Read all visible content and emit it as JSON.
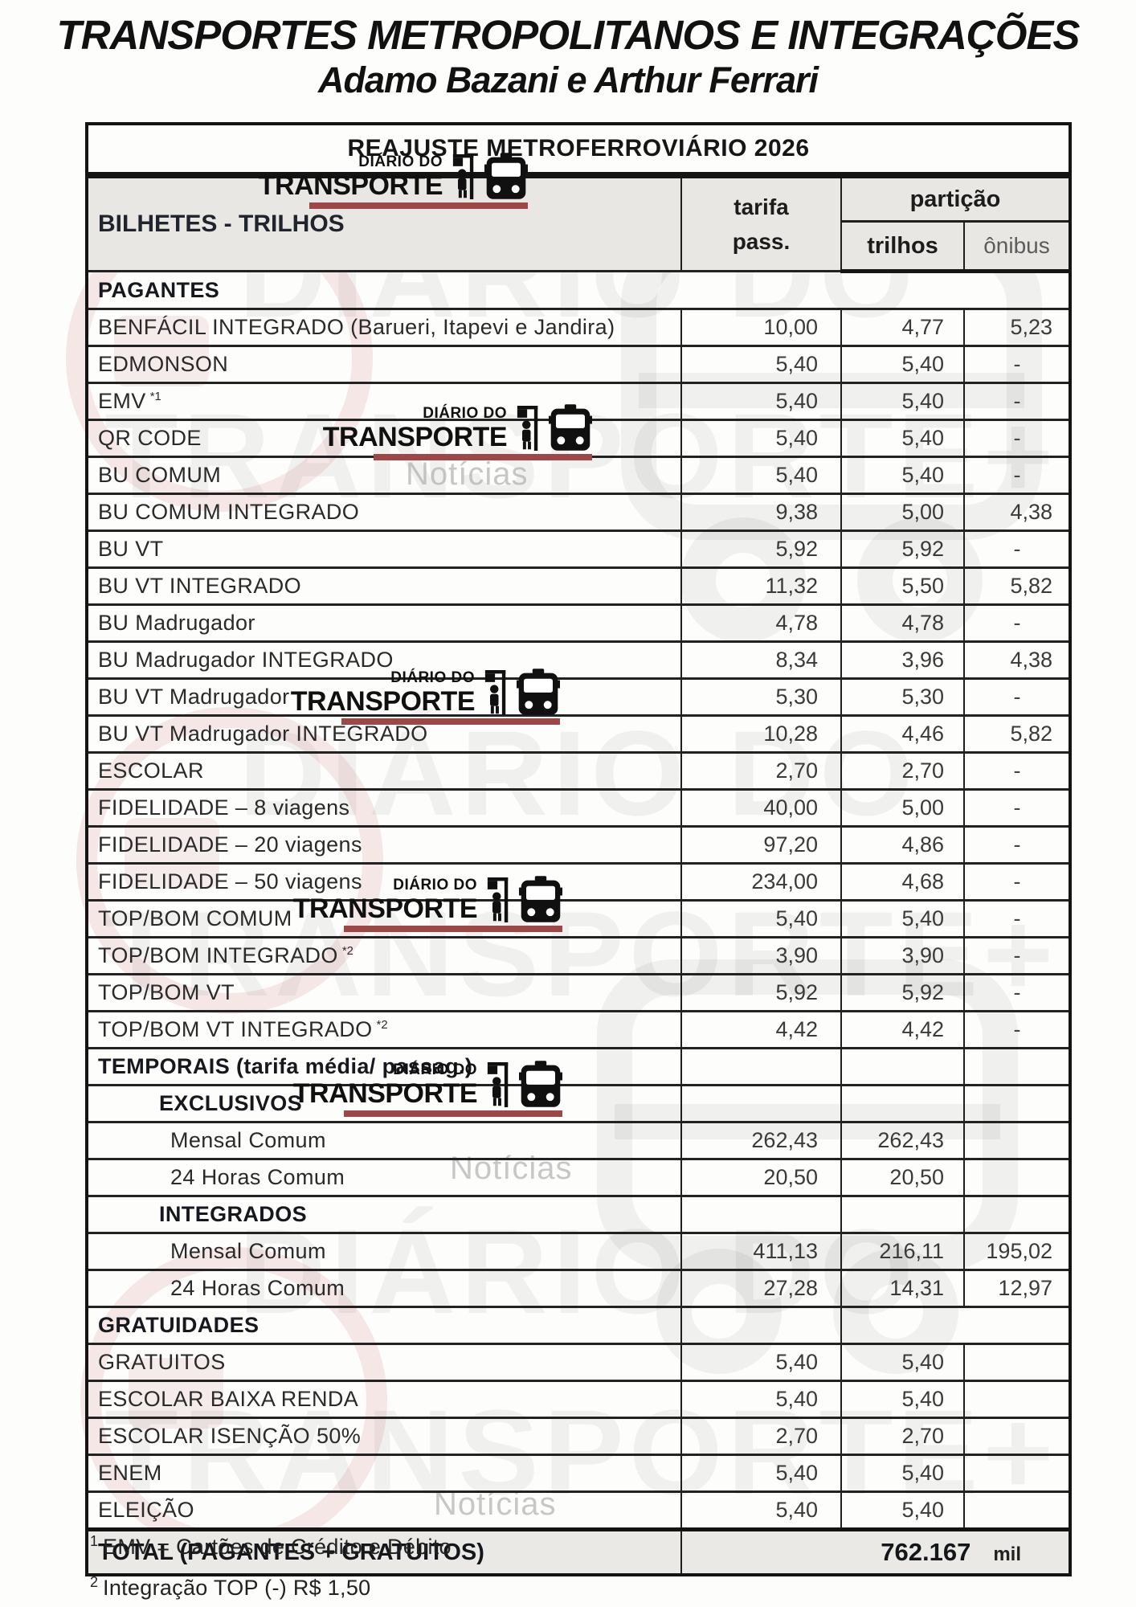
{
  "page": {
    "title": "TRANSPORTES METROPOLITANOS E INTEGRAÇÕES",
    "subtitle": "Adamo Bazani e Arthur Ferrari"
  },
  "logo": {
    "line1": "DIÁRIO DO",
    "line2": "TRANSPORTE",
    "noticias": "Notícias",
    "watermark_line1": "DIÁRIO DO",
    "watermark_line2": "TRANSPORTE+",
    "bar_color": "#9e4747"
  },
  "table": {
    "title": "REAJUSTE METROFERROVIÁRIO 2026",
    "headers": {
      "col1": "BILHETES - TRILHOS",
      "tarifa_l1": "tarifa",
      "tarifa_l2": "pass.",
      "particao": "partição",
      "trilhos": "trilhos",
      "onibus": "ônibus"
    },
    "rows": [
      {
        "type": "section",
        "merged": true,
        "label": "PAGANTES"
      },
      {
        "type": "data",
        "label": "BENFÁCIL INTEGRADO (Barueri, Itapevi e Jandira)",
        "tarifa": "10,00",
        "trilhos": "4,77",
        "onibus": "5,23"
      },
      {
        "type": "data",
        "label": "EDMONSON",
        "tarifa": "5,40",
        "trilhos": "5,40",
        "onibus": "-"
      },
      {
        "type": "data",
        "label": "EMV",
        "sup": "*1",
        "tarifa": "5,40",
        "trilhos": "5,40",
        "onibus": "-"
      },
      {
        "type": "data",
        "label": "QR CODE",
        "tarifa": "5,40",
        "trilhos": "5,40",
        "onibus": "-"
      },
      {
        "type": "data",
        "label": "BU COMUM",
        "tarifa": "5,40",
        "trilhos": "5,40",
        "onibus": "-"
      },
      {
        "type": "data",
        "label": "BU COMUM INTEGRADO",
        "tarifa": "9,38",
        "trilhos": "5,00",
        "onibus": "4,38"
      },
      {
        "type": "data",
        "label": "BU VT",
        "tarifa": "5,92",
        "trilhos": "5,92",
        "onibus": "-"
      },
      {
        "type": "data",
        "label": "BU VT INTEGRADO",
        "tarifa": "11,32",
        "trilhos": "5,50",
        "onibus": "5,82"
      },
      {
        "type": "data",
        "label": "BU Madrugador",
        "tarifa": "4,78",
        "trilhos": "4,78",
        "onibus": "-"
      },
      {
        "type": "data",
        "label": "BU Madrugador INTEGRADO",
        "tarifa": "8,34",
        "trilhos": "3,96",
        "onibus": "4,38"
      },
      {
        "type": "data",
        "label": "BU VT Madrugador",
        "tarifa": "5,30",
        "trilhos": "5,30",
        "onibus": "-"
      },
      {
        "type": "data",
        "label": "BU VT Madrugador INTEGRADO",
        "tarifa": "10,28",
        "trilhos": "4,46",
        "onibus": "5,82"
      },
      {
        "type": "data",
        "label": "ESCOLAR",
        "tarifa": "2,70",
        "trilhos": "2,70",
        "onibus": "-"
      },
      {
        "type": "data",
        "label": "FIDELIDADE – 8 viagens",
        "tarifa": "40,00",
        "trilhos": "5,00",
        "onibus": "-"
      },
      {
        "type": "data",
        "label": "FIDELIDADE – 20 viagens",
        "tarifa": "97,20",
        "trilhos": "4,86",
        "onibus": "-"
      },
      {
        "type": "data",
        "label": "FIDELIDADE – 50 viagens",
        "tarifa": "234,00",
        "trilhos": "4,68",
        "onibus": "-"
      },
      {
        "type": "data",
        "label": "TOP/BOM COMUM",
        "tarifa": "5,40",
        "trilhos": "5,40",
        "onibus": "-"
      },
      {
        "type": "data",
        "label": "TOP/BOM INTEGRADO",
        "sup": "*2",
        "tarifa": "3,90",
        "trilhos": "3,90",
        "onibus": "-"
      },
      {
        "type": "data",
        "label": "TOP/BOM VT",
        "tarifa": "5,92",
        "trilhos": "5,92",
        "onibus": "-"
      },
      {
        "type": "data",
        "label": "TOP/BOM VT INTEGRADO",
        "sup": "*2",
        "tarifa": "4,42",
        "trilhos": "4,42",
        "onibus": "-"
      },
      {
        "type": "section",
        "label": "TEMPORAIS (tarifa média/ passag.)",
        "tarifa": "",
        "trilhos": "",
        "onibus": ""
      },
      {
        "type": "subsection",
        "label": "EXCLUSIVOS",
        "tarifa": "",
        "trilhos": "",
        "onibus": ""
      },
      {
        "type": "subitem",
        "label": "Mensal Comum",
        "tarifa": "262,43",
        "trilhos": "262,43",
        "onibus": ""
      },
      {
        "type": "subitem",
        "label": "24 Horas Comum",
        "tarifa": "20,50",
        "trilhos": "20,50",
        "onibus": ""
      },
      {
        "type": "subsection",
        "label": "INTEGRADOS",
        "tarifa": "",
        "trilhos": "",
        "onibus": ""
      },
      {
        "type": "subitem",
        "label": "Mensal Comum",
        "tarifa": "411,13",
        "trilhos": "216,11",
        "onibus": "195,02"
      },
      {
        "type": "subitem",
        "label": "24 Horas Comum",
        "tarifa": "27,28",
        "trilhos": "14,31",
        "onibus": "12,97"
      },
      {
        "type": "section",
        "span23": true,
        "label": "GRATUIDADES",
        "tarifa": "",
        "trilhos": ""
      },
      {
        "type": "data",
        "label": "GRATUITOS",
        "tarifa": "5,40",
        "trilhos": "5,40",
        "onibus": ""
      },
      {
        "type": "data",
        "label": "ESCOLAR BAIXA RENDA",
        "tarifa": "5,40",
        "trilhos": "5,40",
        "onibus": ""
      },
      {
        "type": "data",
        "label": "ESCOLAR ISENÇÃO 50%",
        "tarifa": "2,70",
        "trilhos": "2,70",
        "onibus": ""
      },
      {
        "type": "data",
        "label": "ENEM",
        "tarifa": "5,40",
        "trilhos": "5,40",
        "onibus": ""
      },
      {
        "type": "data",
        "label": "ELEIÇÃO",
        "tarifa": "5,40",
        "trilhos": "5,40",
        "onibus": ""
      }
    ],
    "total": {
      "label": "TOTAL (PAGANTES + GRATUITOS)",
      "value": "762.167",
      "unit": "mil"
    }
  },
  "footnotes": [
    {
      "sup": "1",
      "text": "EMV = Cartões de Crédito e Débito"
    },
    {
      "sup": "2",
      "text": "Integração TOP (-) R$ 1,50"
    }
  ]
}
